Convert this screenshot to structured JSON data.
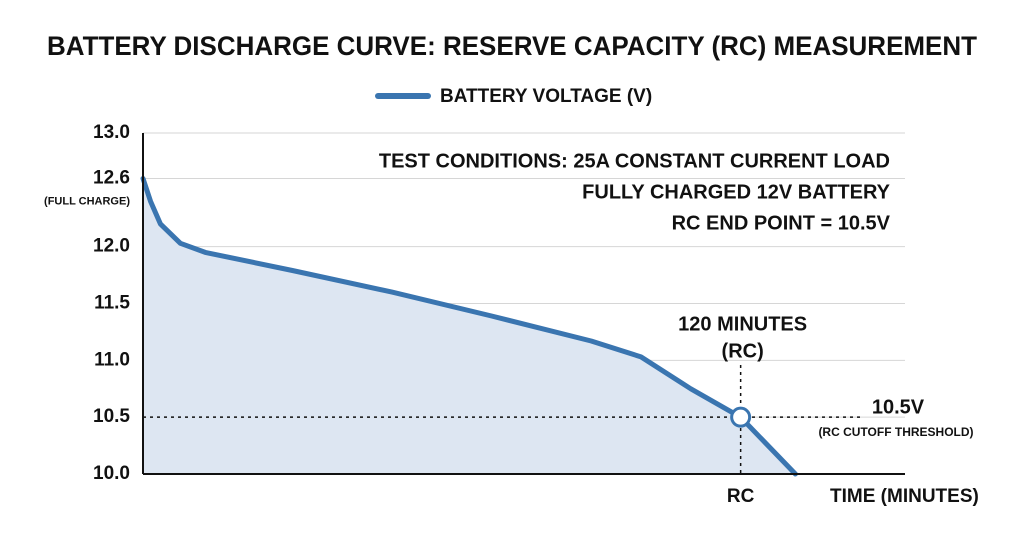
{
  "chart_data": {
    "type": "line",
    "title": "BATTERY DISCHARGE CURVE: RESERVE CAPACITY (RC) MEASUREMENT",
    "x_label": "TIME (MINUTES)",
    "x": [
      0,
      1.5,
      3.5,
      7.5,
      12.5,
      30,
      50,
      70,
      90,
      100,
      110,
      120,
      131
    ],
    "series": [
      {
        "name": "BATTERY VOLTAGE (V)",
        "color": "#3a75b0",
        "fill": "#dde6f2",
        "values": [
          12.6,
          12.4,
          12.2,
          12.03,
          11.95,
          11.79,
          11.6,
          11.39,
          11.17,
          11.03,
          10.75,
          10.5,
          10.0
        ]
      }
    ],
    "xlim": [
      0,
      153
    ],
    "xticks": [
      {
        "value": 120,
        "label": "RC"
      }
    ],
    "ylim": [
      10,
      13
    ],
    "yticks": [
      {
        "value": 10,
        "label": "10.0"
      },
      10.5,
      {
        "value": 11,
        "label": "11.0"
      },
      11.5,
      {
        "value": 12,
        "label": "12.0"
      },
      12.6,
      {
        "value": 13,
        "label": "13.0"
      }
    ],
    "full_charge_label": "(FULL CHARGE)",
    "grid": true,
    "rc_point": {
      "x": 120,
      "y": 10.5
    },
    "rc_labels": [
      "120 MINUTES",
      "(RC)"
    ],
    "threshold_labels": [
      "10.5V",
      "(RC CUTOFF THRESHOLD)"
    ],
    "notes": [
      "TEST CONDITIONS: 25A CONSTANT CURRENT LOAD",
      "FULLY CHARGED 12V BATTERY",
      "RC END POINT = 10.5V"
    ]
  }
}
